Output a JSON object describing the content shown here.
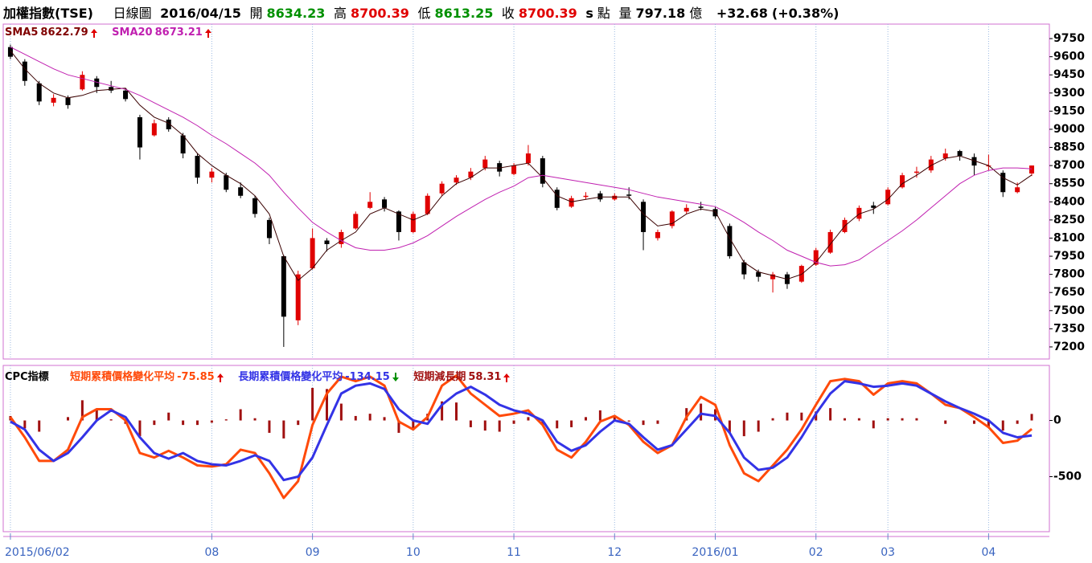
{
  "header": {
    "title": "加權指數(TSE)",
    "period": "日線圖",
    "date": "2016/04/15",
    "open_label": "開",
    "high_label": "高",
    "low_label": "低",
    "close_label": "收",
    "s": "s",
    "unit": "點",
    "volume_label": "量",
    "volume": 797.18,
    "volume_unit": "億",
    "change": "+32.68",
    "change_pct": "(+0.38%)"
  },
  "chart_data": [
    {
      "type": "candlestick",
      "up_color": "#e00000",
      "down_color": "#000000",
      "grid": "x",
      "categories": [
        "2015/06/02",
        null,
        null,
        null,
        null,
        null,
        null,
        null,
        null,
        null,
        null,
        null,
        null,
        null,
        "08",
        null,
        null,
        null,
        null,
        null,
        null,
        "09",
        null,
        null,
        null,
        null,
        null,
        null,
        "10",
        null,
        null,
        null,
        null,
        null,
        null,
        "11",
        null,
        null,
        null,
        null,
        null,
        null,
        "12",
        null,
        null,
        null,
        null,
        null,
        null,
        "2016/01",
        null,
        null,
        null,
        null,
        null,
        null,
        "02",
        null,
        null,
        null,
        null,
        "03",
        null,
        null,
        null,
        null,
        null,
        null,
        "04",
        null,
        null,
        null
      ],
      "ohlc": [
        [
          9680,
          9700,
          9580,
          9600
        ],
        [
          9560,
          9580,
          9360,
          9400
        ],
        [
          9380,
          9400,
          9200,
          9230
        ],
        [
          9220,
          9290,
          9190,
          9260
        ],
        [
          9260,
          9280,
          9170,
          9200
        ],
        [
          9330,
          9480,
          9320,
          9450
        ],
        [
          9420,
          9440,
          9300,
          9350
        ],
        [
          9350,
          9400,
          9300,
          9320
        ],
        [
          9320,
          9340,
          9230,
          9250
        ],
        [
          9100,
          9120,
          8750,
          8850
        ],
        [
          8950,
          9080,
          8940,
          9050
        ],
        [
          9080,
          9100,
          8980,
          9000
        ],
        [
          8950,
          8970,
          8760,
          8800
        ],
        [
          8780,
          8800,
          8550,
          8600
        ],
        [
          8600,
          8680,
          8560,
          8650
        ],
        [
          8620,
          8640,
          8480,
          8500
        ],
        [
          8520,
          8560,
          8430,
          8450
        ],
        [
          8430,
          8450,
          8270,
          8300
        ],
        [
          8250,
          8270,
          8050,
          8100
        ],
        [
          7950,
          7960,
          7200,
          7450
        ],
        [
          7420,
          7830,
          7380,
          7800
        ],
        [
          7850,
          8180,
          7840,
          8100
        ],
        [
          8080,
          8100,
          7990,
          8050
        ],
        [
          8050,
          8170,
          8020,
          8150
        ],
        [
          8180,
          8320,
          8170,
          8300
        ],
        [
          8350,
          8480,
          8340,
          8400
        ],
        [
          8420,
          8440,
          8320,
          8350
        ],
        [
          8320,
          8330,
          8080,
          8150
        ],
        [
          8150,
          8320,
          8140,
          8300
        ],
        [
          8300,
          8470,
          8290,
          8450
        ],
        [
          8470,
          8570,
          8450,
          8550
        ],
        [
          8560,
          8620,
          8540,
          8600
        ],
        [
          8600,
          8680,
          8580,
          8650
        ],
        [
          8680,
          8780,
          8660,
          8750
        ],
        [
          8720,
          8740,
          8610,
          8650
        ],
        [
          8630,
          8720,
          8620,
          8700
        ],
        [
          8720,
          8870,
          8700,
          8800
        ],
        [
          8760,
          8780,
          8520,
          8550
        ],
        [
          8500,
          8520,
          8330,
          8350
        ],
        [
          8360,
          8450,
          8350,
          8430
        ],
        [
          8440,
          8480,
          8420,
          8450
        ],
        [
          8470,
          8490,
          8400,
          8420
        ],
        [
          8420,
          8470,
          8410,
          8450
        ],
        [
          8460,
          8520,
          8420,
          8450
        ],
        [
          8400,
          8420,
          8000,
          8150
        ],
        [
          8100,
          8170,
          8080,
          8150
        ],
        [
          8200,
          8330,
          8180,
          8320
        ],
        [
          8320,
          8380,
          8300,
          8350
        ],
        [
          8360,
          8400,
          8330,
          8350
        ],
        [
          8340,
          8360,
          8260,
          8280
        ],
        [
          8200,
          8220,
          7930,
          7950
        ],
        [
          7900,
          7920,
          7760,
          7800
        ],
        [
          7820,
          7840,
          7740,
          7780
        ],
        [
          7760,
          7820,
          7650,
          7800
        ],
        [
          7800,
          7820,
          7680,
          7720
        ],
        [
          7740,
          7880,
          7730,
          7870
        ],
        [
          7880,
          8020,
          7870,
          8000
        ],
        [
          7980,
          8170,
          7970,
          8150
        ],
        [
          8150,
          8270,
          8140,
          8250
        ],
        [
          8260,
          8370,
          8240,
          8350
        ],
        [
          8370,
          8400,
          8300,
          8350
        ],
        [
          8380,
          8520,
          8370,
          8500
        ],
        [
          8520,
          8640,
          8510,
          8620
        ],
        [
          8640,
          8690,
          8600,
          8650
        ],
        [
          8660,
          8780,
          8640,
          8750
        ],
        [
          8760,
          8840,
          8740,
          8800
        ],
        [
          8820,
          8830,
          8740,
          8780
        ],
        [
          8770,
          8800,
          8620,
          8700
        ],
        [
          8700,
          8790,
          8660,
          8700
        ],
        [
          8640,
          8660,
          8440,
          8480
        ],
        [
          8480,
          8560,
          8470,
          8520
        ],
        [
          8634.23,
          8700.39,
          8613.25,
          8700.39
        ]
      ],
      "series": [
        {
          "name": "SMA5",
          "color": "#3a0000",
          "values": [
            9650,
            9500,
            9380,
            9300,
            9260,
            9280,
            9320,
            9330,
            9340,
            9200,
            9100,
            9050,
            8950,
            8800,
            8700,
            8620,
            8550,
            8450,
            8300,
            7950,
            7750,
            7850,
            8000,
            8080,
            8150,
            8300,
            8350,
            8300,
            8250,
            8300,
            8450,
            8550,
            8600,
            8680,
            8680,
            8700,
            8720,
            8600,
            8450,
            8400,
            8420,
            8440,
            8440,
            8440,
            8300,
            8200,
            8220,
            8300,
            8340,
            8320,
            8100,
            7900,
            7820,
            7790,
            7760,
            7800,
            7900,
            8050,
            8200,
            8300,
            8340,
            8420,
            8550,
            8620,
            8700,
            8760,
            8780,
            8740,
            8700,
            8600,
            8540,
            8622.79
          ]
        },
        {
          "name": "SMA20",
          "color": "#c020b0",
          "values": [
            9680,
            9620,
            9560,
            9500,
            9450,
            9420,
            9390,
            9360,
            9330,
            9280,
            9220,
            9160,
            9100,
            9030,
            8950,
            8880,
            8800,
            8720,
            8620,
            8480,
            8350,
            8230,
            8150,
            8080,
            8020,
            8000,
            8000,
            8020,
            8060,
            8120,
            8200,
            8280,
            8350,
            8420,
            8480,
            8530,
            8600,
            8620,
            8600,
            8580,
            8560,
            8540,
            8520,
            8500,
            8470,
            8440,
            8420,
            8400,
            8380,
            8360,
            8300,
            8230,
            8150,
            8080,
            8000,
            7950,
            7900,
            7870,
            7880,
            7920,
            8000,
            8080,
            8160,
            8250,
            8350,
            8450,
            8550,
            8620,
            8660,
            8680,
            8680,
            8673.21
          ]
        }
      ],
      "ylim": [
        7100,
        9870
      ],
      "yticks": [
        7200,
        7350,
        7500,
        7650,
        7800,
        7950,
        8100,
        8250,
        8400,
        8550,
        8700,
        8850,
        9000,
        9150,
        9300,
        9450,
        9600,
        9750
      ]
    },
    {
      "type": "indicator",
      "title": "CPC指標",
      "grid": "x",
      "series": [
        {
          "name": "短期累積價格變化平均",
          "color": "#ff4a0a",
          "kind": "line",
          "values": [
            30,
            -150,
            -360,
            -360,
            -260,
            30,
            100,
            100,
            0,
            -290,
            -330,
            -270,
            -330,
            -400,
            -410,
            -390,
            -260,
            -290,
            -470,
            -690,
            -540,
            -40,
            240,
            390,
            350,
            390,
            310,
            -10,
            -80,
            30,
            310,
            400,
            240,
            140,
            40,
            60,
            90,
            -40,
            -260,
            -330,
            -190,
            -10,
            40,
            -40,
            -190,
            -290,
            -220,
            30,
            210,
            140,
            -220,
            -470,
            -540,
            -400,
            -260,
            -80,
            140,
            350,
            370,
            350,
            230,
            330,
            350,
            330,
            240,
            140,
            110,
            30,
            -60,
            -200,
            -180,
            -75.85
          ]
        },
        {
          "name": "長期累積價格變化平均",
          "color": "#3333e6",
          "kind": "line",
          "values": [
            -10,
            -80,
            -260,
            -360,
            -290,
            -150,
            0,
            90,
            30,
            -150,
            -290,
            -340,
            -290,
            -360,
            -390,
            -400,
            -360,
            -310,
            -360,
            -530,
            -500,
            -330,
            -40,
            240,
            310,
            330,
            280,
            100,
            0,
            -30,
            140,
            240,
            300,
            230,
            140,
            90,
            60,
            0,
            -190,
            -270,
            -220,
            -100,
            0,
            -30,
            -150,
            -260,
            -220,
            -80,
            60,
            40,
            -110,
            -330,
            -440,
            -420,
            -330,
            -150,
            60,
            240,
            350,
            330,
            300,
            310,
            330,
            310,
            240,
            170,
            110,
            60,
            0,
            -110,
            -150,
            -134.15
          ]
        },
        {
          "name": "短期減長期",
          "color": "#a01010",
          "kind": "bar",
          "values": [
            40,
            -70,
            -100,
            0,
            30,
            180,
            100,
            10,
            -30,
            -140,
            -40,
            70,
            -40,
            -40,
            -20,
            10,
            100,
            20,
            -110,
            -160,
            -40,
            290,
            280,
            150,
            40,
            60,
            30,
            -110,
            -80,
            60,
            170,
            160,
            -60,
            -90,
            -100,
            -30,
            30,
            -40,
            -70,
            -60,
            30,
            90,
            40,
            -10,
            -40,
            -30,
            0,
            110,
            150,
            100,
            -110,
            -140,
            -100,
            20,
            70,
            70,
            80,
            110,
            20,
            20,
            -70,
            20,
            20,
            20,
            0,
            -30,
            0,
            -30,
            -60,
            -90,
            -30,
            58.31
          ]
        }
      ],
      "ylim": [
        -990,
        490
      ],
      "yticks": [
        0,
        -500
      ]
    }
  ]
}
